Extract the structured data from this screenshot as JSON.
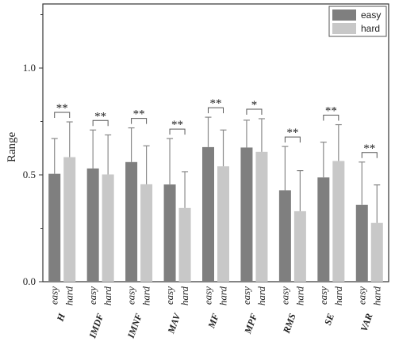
{
  "chart_data": {
    "type": "bar",
    "title": "",
    "xlabel": "",
    "ylabel": "Range",
    "ylim": [
      0,
      1.3
    ],
    "yticks": [
      "0.0",
      "0.5",
      "1.0"
    ],
    "categories": [
      "H",
      "IMDF",
      "IMNF",
      "MAV",
      "MF",
      "MPF",
      "RMS",
      "SE",
      "VAR"
    ],
    "sub_labels": [
      "easy",
      "hard"
    ],
    "series": [
      {
        "name": "easy",
        "color": "#7f7f7f",
        "values": [
          0.505,
          0.53,
          0.56,
          0.455,
          0.63,
          0.628,
          0.428,
          0.488,
          0.36
        ],
        "errors": [
          0.165,
          0.18,
          0.16,
          0.215,
          0.14,
          0.128,
          0.205,
          0.165,
          0.2
        ]
      },
      {
        "name": "hard",
        "color": "#c8c8c8",
        "values": [
          0.583,
          0.502,
          0.456,
          0.345,
          0.54,
          0.608,
          0.33,
          0.565,
          0.275
        ],
        "errors": [
          0.165,
          0.185,
          0.18,
          0.17,
          0.17,
          0.155,
          0.19,
          0.17,
          0.178
        ]
      }
    ],
    "significance": [
      "**",
      "**",
      "**",
      "**",
      "**",
      "*",
      "**",
      "**",
      "**"
    ],
    "legend": {
      "position": "top-right",
      "entries": [
        "easy",
        "hard"
      ]
    },
    "grid": false
  }
}
